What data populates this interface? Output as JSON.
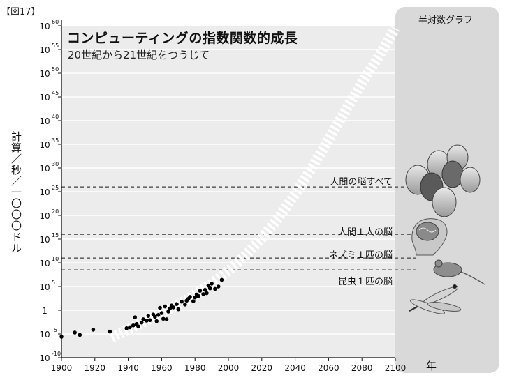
{
  "figure_label": "【図17】",
  "panel_title": "半対数グラフ",
  "year_unit": "年",
  "panel_icons": [
    "human-faces-icon",
    "human-brain-icon",
    "mouse-icon",
    "dragonfly-icon"
  ],
  "colors": {
    "panel": "#d9d9d9",
    "trend": "#ffffff",
    "points": "#000000",
    "reference": "#666666"
  },
  "chart_data": {
    "type": "scatter",
    "title": "コンピューティングの指数関数的成長",
    "subtitle": "20世紀から21世紀をつうじて",
    "ylabel": "計算／秒／一〇〇〇ドル",
    "xlabel": "",
    "x_scale": "linear",
    "y_scale": "log",
    "xlim": [
      1900,
      2100
    ],
    "ylim": [
      -10,
      60
    ],
    "x_ticks": [
      1900,
      1920,
      1940,
      1960,
      1980,
      2000,
      2020,
      2040,
      2060,
      2080,
      2100
    ],
    "y_ticks": [
      {
        "exp": -10,
        "label": "10",
        "sup": "-10"
      },
      {
        "exp": -5,
        "label": "10",
        "sup": "-5"
      },
      {
        "exp": 0,
        "label": "1",
        "sup": ""
      },
      {
        "exp": 5,
        "label": "10",
        "sup": "5"
      },
      {
        "exp": 10,
        "label": "10",
        "sup": "10"
      },
      {
        "exp": 15,
        "label": "10",
        "sup": "15"
      },
      {
        "exp": 20,
        "label": "10",
        "sup": "20"
      },
      {
        "exp": 25,
        "label": "10",
        "sup": "25"
      },
      {
        "exp": 30,
        "label": "10",
        "sup": "30"
      },
      {
        "exp": 35,
        "label": "10",
        "sup": "35"
      },
      {
        "exp": 40,
        "label": "10",
        "sup": "40"
      },
      {
        "exp": 45,
        "label": "10",
        "sup": "45"
      },
      {
        "exp": 50,
        "label": "10",
        "sup": "50"
      },
      {
        "exp": 55,
        "label": "10",
        "sup": "55"
      },
      {
        "exp": 60,
        "label": "10",
        "sup": "60"
      }
    ],
    "grid": true,
    "points": [
      [
        1900,
        -5.6
      ],
      [
        1908,
        -4.7
      ],
      [
        1911,
        -5.2
      ],
      [
        1919,
        -4.1
      ],
      [
        1929,
        -4.5
      ],
      [
        1939,
        -3.8
      ],
      [
        1941,
        -3.6
      ],
      [
        1943,
        -3.2
      ],
      [
        1944,
        -1.5
      ],
      [
        1945,
        -2.9
      ],
      [
        1946,
        -3.4
      ],
      [
        1948,
        -2.6
      ],
      [
        1949,
        -1.9
      ],
      [
        1951,
        -2.2
      ],
      [
        1952,
        -1.2
      ],
      [
        1953,
        -2.1
      ],
      [
        1955,
        -0.9
      ],
      [
        1956,
        -1.4
      ],
      [
        1957,
        -2.3
      ],
      [
        1958,
        -1.0
      ],
      [
        1959,
        0.5
      ],
      [
        1960,
        -0.6
      ],
      [
        1961,
        -1.8
      ],
      [
        1962,
        0.8
      ],
      [
        1963,
        -1.9
      ],
      [
        1964,
        -0.3
      ],
      [
        1965,
        0.4
      ],
      [
        1966,
        1.0
      ],
      [
        1967,
        0.6
      ],
      [
        1969,
        1.3
      ],
      [
        1970,
        0.2
      ],
      [
        1972,
        1.8
      ],
      [
        1974,
        1.2
      ],
      [
        1975,
        2.0
      ],
      [
        1976,
        2.4
      ],
      [
        1977,
        2.8
      ],
      [
        1979,
        1.9
      ],
      [
        1980,
        2.7
      ],
      [
        1981,
        3.3
      ],
      [
        1982,
        3.0
      ],
      [
        1983,
        4.1
      ],
      [
        1985,
        3.4
      ],
      [
        1986,
        4.3
      ],
      [
        1987,
        3.6
      ],
      [
        1988,
        5.2
      ],
      [
        1989,
        4.6
      ],
      [
        1990,
        5.6
      ],
      [
        1992,
        4.5
      ],
      [
        1994,
        5.0
      ],
      [
        1996,
        6.4
      ]
    ],
    "trend": [
      [
        1930,
        -5.8
      ],
      [
        1945,
        -3.2
      ],
      [
        1960,
        -0.6
      ],
      [
        1975,
        2.2
      ],
      [
        1990,
        5.6
      ],
      [
        2000,
        8.3
      ],
      [
        2010,
        11.5
      ],
      [
        2020,
        15.2
      ],
      [
        2030,
        19.5
      ],
      [
        2040,
        24.5
      ],
      [
        2050,
        30.0
      ],
      [
        2060,
        36.0
      ],
      [
        2070,
        42.0
      ],
      [
        2080,
        48.0
      ],
      [
        2090,
        53.5
      ],
      [
        2100,
        59.5
      ]
    ],
    "reference_lines": [
      {
        "exp": 26,
        "label": "人間の脳すべて"
      },
      {
        "exp": 16,
        "label": "人間１人の脳"
      },
      {
        "exp": 11,
        "label": "ネズミ１匹の脳"
      },
      {
        "exp": 8.5,
        "label": "昆虫１匹の脳"
      }
    ]
  }
}
